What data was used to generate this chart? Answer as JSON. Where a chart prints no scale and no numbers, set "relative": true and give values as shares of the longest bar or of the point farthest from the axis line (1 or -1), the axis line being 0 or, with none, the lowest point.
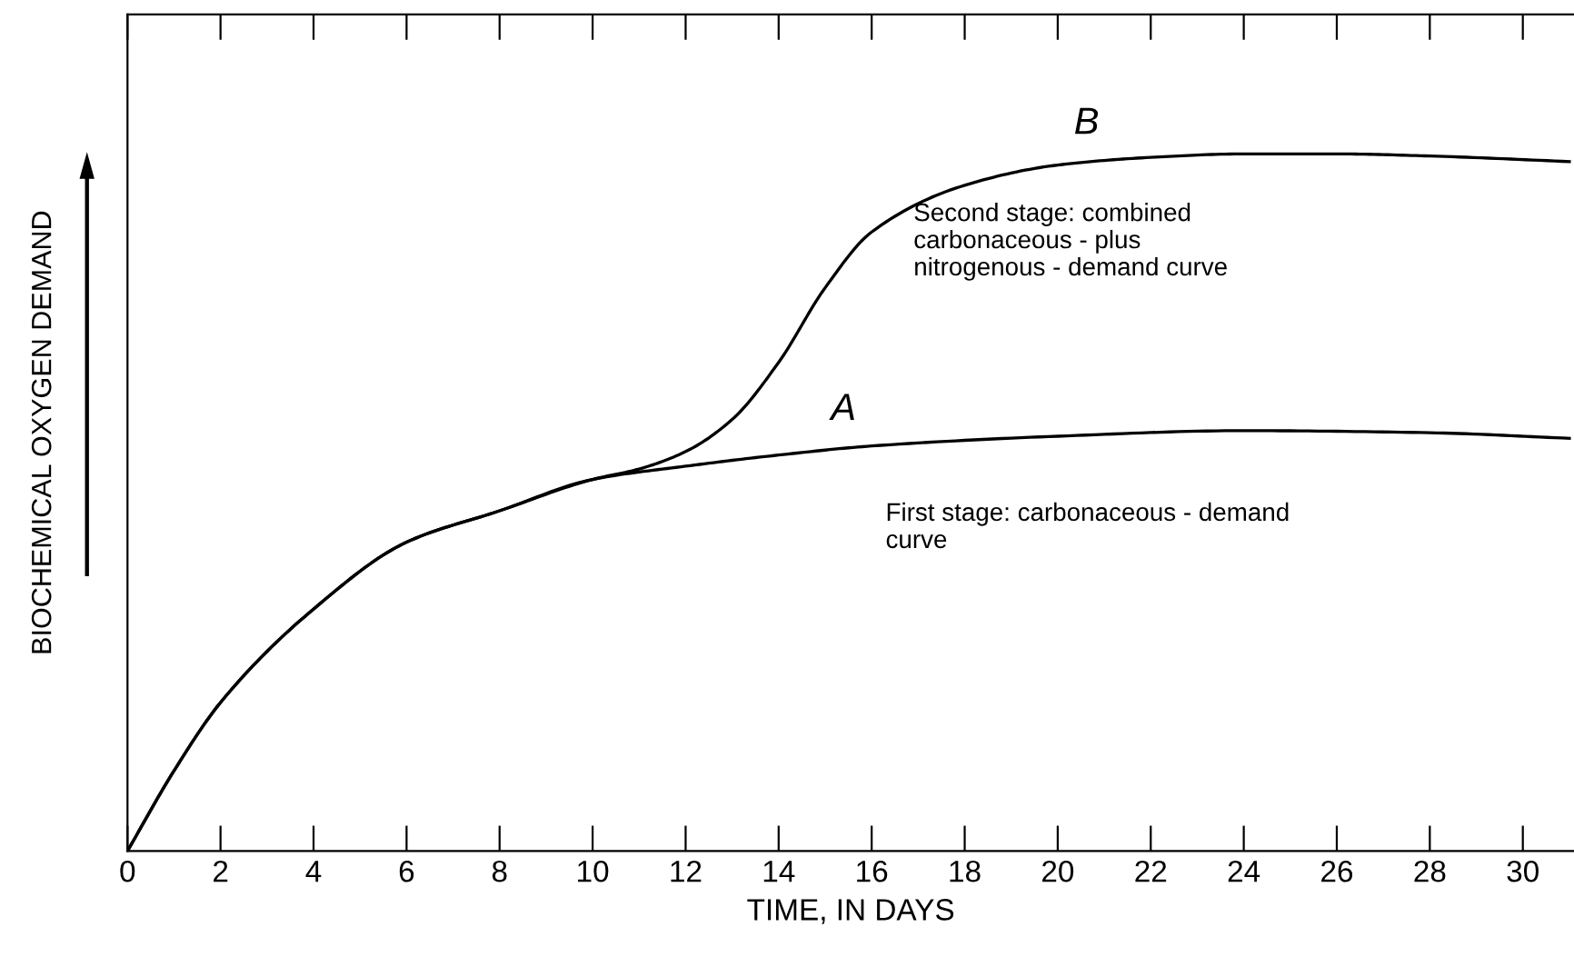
{
  "chart_data": {
    "type": "line",
    "relative": true,
    "xlabel": "TIME, IN DAYS",
    "ylabel": "BIOCHEMICAL OXYGEN DEMAND",
    "xlim": [
      0,
      31.1
    ],
    "xticks": [
      0,
      2,
      4,
      6,
      8,
      10,
      12,
      14,
      16,
      18,
      20,
      22,
      24,
      26,
      28,
      30
    ],
    "tick_labels": "x",
    "grid": false,
    "legend": false,
    "marker": "none",
    "line_style": "solid",
    "series": [
      {
        "name": "B",
        "color": "#000000",
        "x": [
          0,
          1,
          2,
          4,
          6,
          8,
          10,
          11,
          12,
          13,
          14,
          15,
          16,
          18,
          20,
          22,
          24,
          26,
          28,
          31
        ],
        "values": [
          0,
          0.115,
          0.213,
          0.347,
          0.443,
          0.488,
          0.533,
          0.548,
          0.573,
          0.619,
          0.701,
          0.808,
          0.888,
          0.955,
          0.984,
          0.995,
          1,
          1,
          0.997,
          0.989
        ]
      },
      {
        "name": "A",
        "color": "#000000",
        "x": [
          0,
          1,
          2,
          4,
          6,
          8,
          10,
          12,
          14,
          16,
          20,
          24,
          28,
          31
        ],
        "values": [
          0,
          0.115,
          0.213,
          0.347,
          0.443,
          0.488,
          0.533,
          0.552,
          0.568,
          0.581,
          0.595,
          0.603,
          0.6,
          0.592
        ]
      }
    ],
    "annotations": [
      "Second stage: combined\ncarbonaceous - plus\nnitrogenous - demand curve",
      "First stage: carbonaceous - demand\ncurve"
    ]
  }
}
